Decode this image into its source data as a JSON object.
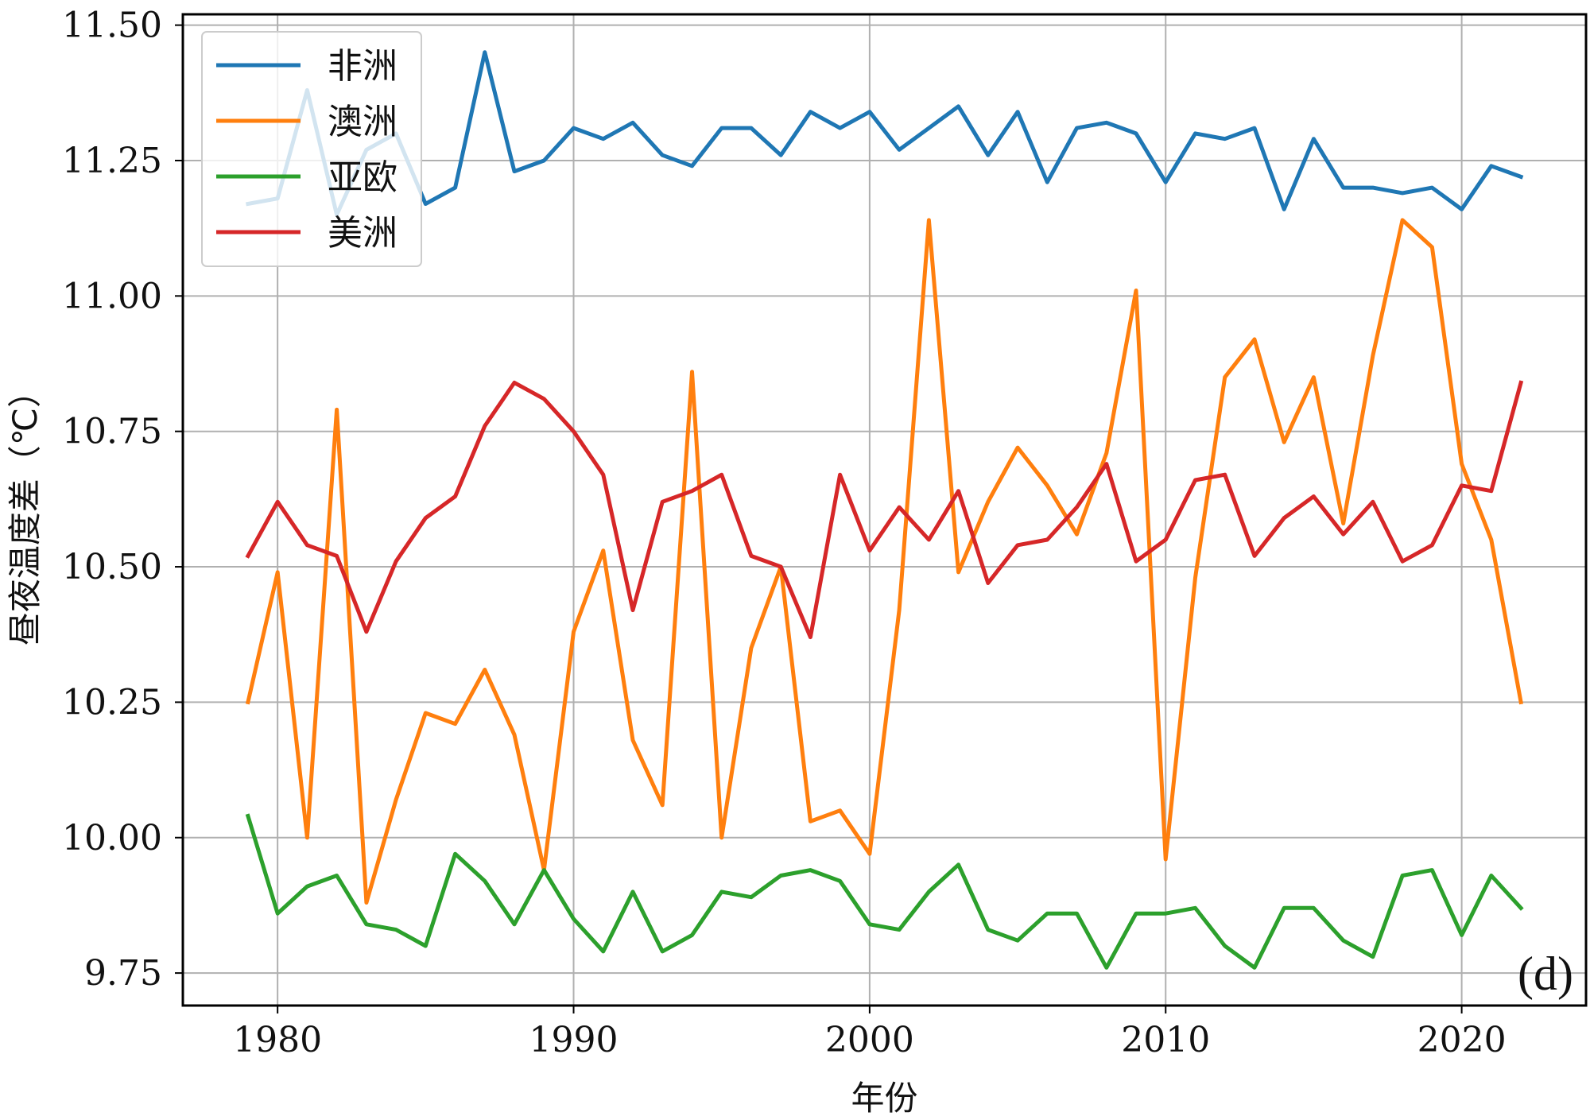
{
  "chart_data": {
    "type": "line",
    "title": "",
    "xlabel": "年份",
    "ylabel": "昼夜温度差（℃）",
    "panel_label": "(d)",
    "grid": true,
    "legend_position": "upper-left",
    "xlim": [
      1976.8,
      2024.2
    ],
    "ylim": [
      9.69,
      11.52
    ],
    "xticks": [
      1980,
      1990,
      2000,
      2010,
      2020
    ],
    "xtick_labels": [
      "1980",
      "1990",
      "2000",
      "2010",
      "2020"
    ],
    "yticks": [
      9.75,
      10.0,
      10.25,
      10.5,
      10.75,
      11.0,
      11.25,
      11.5
    ],
    "ytick_labels": [
      "9.75",
      "10.00",
      "10.25",
      "10.50",
      "10.75",
      "11.00",
      "11.25",
      "11.50"
    ],
    "x": [
      1979,
      1980,
      1981,
      1982,
      1983,
      1984,
      1985,
      1986,
      1987,
      1988,
      1989,
      1990,
      1991,
      1992,
      1993,
      1994,
      1995,
      1996,
      1997,
      1998,
      1999,
      2000,
      2001,
      2002,
      2003,
      2004,
      2005,
      2006,
      2007,
      2008,
      2009,
      2010,
      2011,
      2012,
      2013,
      2014,
      2015,
      2016,
      2017,
      2018,
      2019,
      2020,
      2021,
      2022
    ],
    "series": [
      {
        "name": "非洲",
        "color": "#1f77b4",
        "values": [
          11.17,
          11.18,
          11.38,
          11.15,
          11.27,
          11.3,
          11.17,
          11.2,
          11.45,
          11.23,
          11.25,
          11.31,
          11.29,
          11.32,
          11.26,
          11.24,
          11.31,
          11.31,
          11.26,
          11.34,
          11.31,
          11.34,
          11.27,
          11.31,
          11.35,
          11.26,
          11.34,
          11.21,
          11.31,
          11.32,
          11.3,
          11.21,
          11.3,
          11.29,
          11.31,
          11.16,
          11.29,
          11.2,
          11.2,
          11.19,
          11.2,
          11.16,
          11.24,
          11.22
        ]
      },
      {
        "name": "澳洲",
        "color": "#ff7f0e",
        "values": [
          10.25,
          10.49,
          10.0,
          10.79,
          9.88,
          10.07,
          10.23,
          10.21,
          10.31,
          10.19,
          9.94,
          10.38,
          10.53,
          10.18,
          10.06,
          10.86,
          10.0,
          10.35,
          10.5,
          10.03,
          10.05,
          9.97,
          10.42,
          11.14,
          10.49,
          10.62,
          10.72,
          10.65,
          10.56,
          10.71,
          11.01,
          9.96,
          10.48,
          10.85,
          10.92,
          10.73,
          10.85,
          10.58,
          10.89,
          11.14,
          11.09,
          10.69,
          10.55,
          10.25
        ]
      },
      {
        "name": "亚欧",
        "color": "#2ca02c",
        "values": [
          10.04,
          9.86,
          9.91,
          9.93,
          9.84,
          9.83,
          9.8,
          9.97,
          9.92,
          9.84,
          9.94,
          9.85,
          9.79,
          9.9,
          9.79,
          9.82,
          9.9,
          9.89,
          9.93,
          9.94,
          9.92,
          9.84,
          9.83,
          9.9,
          9.95,
          9.83,
          9.81,
          9.86,
          9.86,
          9.76,
          9.86,
          9.86,
          9.87,
          9.8,
          9.76,
          9.87,
          9.87,
          9.81,
          9.78,
          9.93,
          9.94,
          9.82,
          9.93,
          9.87
        ]
      },
      {
        "name": "美洲",
        "color": "#d62728",
        "values": [
          10.52,
          10.62,
          10.54,
          10.52,
          10.38,
          10.51,
          10.59,
          10.63,
          10.76,
          10.84,
          10.81,
          10.75,
          10.67,
          10.42,
          10.62,
          10.64,
          10.67,
          10.52,
          10.5,
          10.37,
          10.67,
          10.53,
          10.61,
          10.55,
          10.64,
          10.47,
          10.54,
          10.55,
          10.61,
          10.69,
          10.51,
          10.55,
          10.66,
          10.67,
          10.52,
          10.59,
          10.63,
          10.56,
          10.62,
          10.51,
          10.54,
          10.65,
          10.64,
          10.84
        ]
      }
    ]
  }
}
